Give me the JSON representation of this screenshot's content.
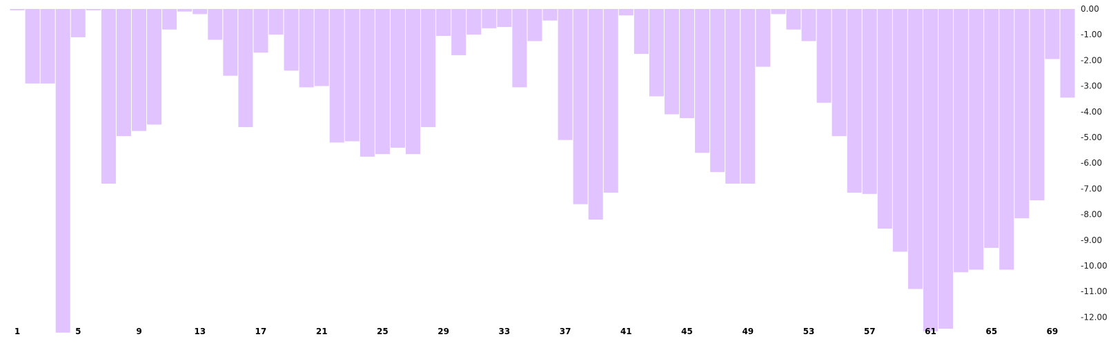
{
  "chart_data": {
    "type": "bar",
    "bar_color": "#e1c4ff",
    "categories": [
      1,
      2,
      3,
      4,
      5,
      6,
      7,
      8,
      9,
      10,
      11,
      12,
      13,
      14,
      15,
      16,
      17,
      18,
      19,
      20,
      21,
      22,
      23,
      24,
      25,
      26,
      27,
      28,
      29,
      30,
      31,
      32,
      33,
      34,
      35,
      36,
      37,
      38,
      39,
      40,
      41,
      42,
      43,
      44,
      45,
      46,
      47,
      48,
      49,
      50,
      51,
      52,
      53,
      54,
      55,
      56,
      57,
      58,
      59,
      60,
      61,
      62,
      63,
      64,
      65,
      66,
      67,
      68,
      69,
      70
    ],
    "values": [
      -0.05,
      -2.9,
      -2.9,
      -12.6,
      -1.1,
      -0.05,
      -6.8,
      -4.95,
      -4.75,
      -4.5,
      -0.8,
      -0.1,
      -0.2,
      -1.2,
      -2.6,
      -4.6,
      -1.7,
      -1.0,
      -2.4,
      -3.05,
      -3.0,
      -5.2,
      -5.15,
      -5.75,
      -5.65,
      -5.4,
      -5.65,
      -4.6,
      -1.05,
      -1.8,
      -1.0,
      -0.75,
      -0.7,
      -3.05,
      -1.25,
      -0.45,
      -5.1,
      -7.6,
      -8.2,
      -7.15,
      -0.25,
      -1.75,
      -3.4,
      -4.1,
      -4.25,
      -5.6,
      -6.35,
      -6.8,
      -6.8,
      -2.25,
      -0.2,
      -0.8,
      -1.25,
      -3.65,
      -4.95,
      -7.15,
      -7.2,
      -8.55,
      -9.45,
      -10.9,
      -12.55,
      -12.45,
      -10.25,
      -10.15,
      -9.3,
      -10.15,
      -8.15,
      -7.45,
      -1.95,
      -3.45
    ],
    "x_tick_labels": [
      "1",
      "5",
      "9",
      "13",
      "17",
      "21",
      "25",
      "29",
      "33",
      "37",
      "41",
      "45",
      "49",
      "53",
      "57",
      "61",
      "65",
      "69"
    ],
    "y_tick_labels": [
      "0.00",
      "-1.00",
      "-2.00",
      "-3.00",
      "-4.00",
      "-5.00",
      "-6.00",
      "-7.00",
      "-8.00",
      "-9.00",
      "-10.00",
      "-11.00",
      "-12.00"
    ],
    "ylim": [
      -12.6,
      0
    ],
    "y_axis_position": "right",
    "grid": false
  }
}
